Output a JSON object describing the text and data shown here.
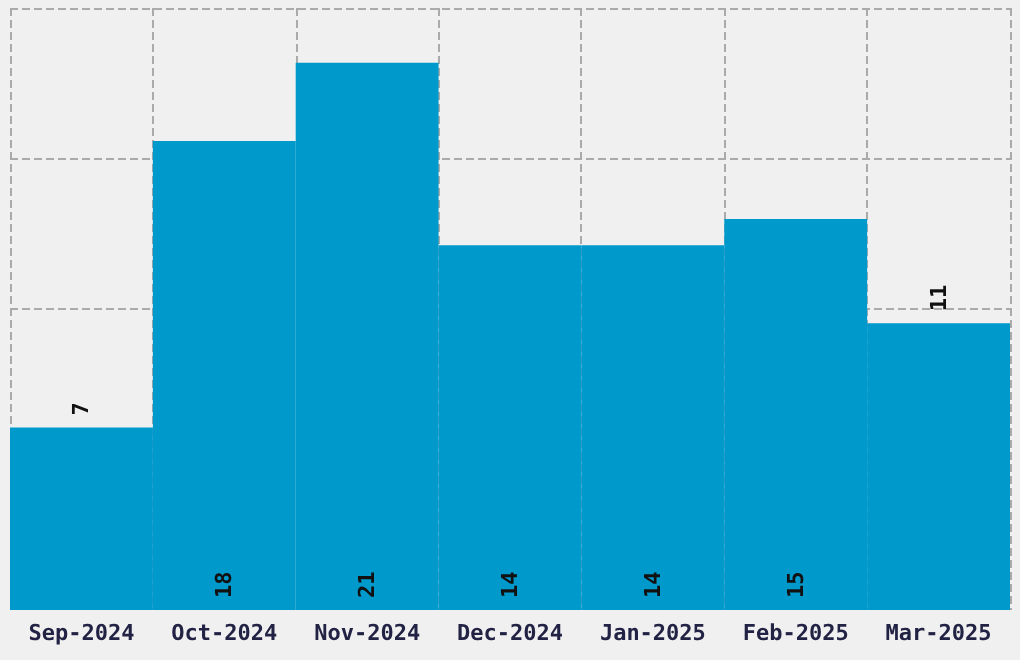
{
  "chart_data": {
    "type": "bar",
    "categories": [
      "Sep-2024",
      "Oct-2024",
      "Nov-2024",
      "Dec-2024",
      "Jan-2025",
      "Feb-2025",
      "Mar-2025"
    ],
    "values": [
      7,
      18,
      21,
      14,
      14,
      15,
      11
    ],
    "color": "#0099cc",
    "ylim": [
      0,
      23.1
    ],
    "yticks": [
      {
        "value": 5.77,
        "label": null
      },
      {
        "value": 11.55,
        "label": null
      },
      {
        "value": 17.32,
        "label": null
      },
      {
        "value": 23.1,
        "label": null
      }
    ],
    "grid": true,
    "data_labels": true,
    "tick_labels": "x"
  }
}
